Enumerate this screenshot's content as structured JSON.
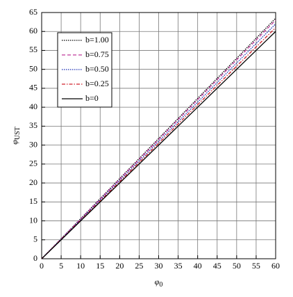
{
  "chart_data": {
    "type": "line",
    "xlabel": {
      "symbol": "φ",
      "subscript": "0"
    },
    "ylabel": {
      "symbol": "φ",
      "subscript": "UST"
    },
    "x": [
      0,
      60
    ],
    "series": [
      {
        "name": "b=1.00",
        "color": "#000000",
        "dash": "1.5,1.5",
        "values": [
          0,
          63.5
        ]
      },
      {
        "name": "b=0.75",
        "color": "#c0389a",
        "dash": "5,3",
        "values": [
          0,
          63
        ]
      },
      {
        "name": "b=0.50",
        "color": "#1a2fb5",
        "dash": "1.5,1.5",
        "values": [
          0,
          62
        ]
      },
      {
        "name": "b=0.25",
        "color": "#d0202a",
        "dash": "5,2,1.5,2",
        "values": [
          0,
          61
        ]
      },
      {
        "name": "b=0",
        "color": "#000000",
        "dash": "none",
        "values": [
          0,
          60
        ]
      }
    ],
    "xlim": [
      0,
      60
    ],
    "ylim": [
      0,
      65
    ],
    "xticks": [
      0,
      5,
      10,
      15,
      20,
      25,
      30,
      35,
      40,
      45,
      50,
      55,
      60
    ],
    "yticks": [
      0,
      5,
      10,
      15,
      20,
      25,
      30,
      35,
      40,
      45,
      50,
      55,
      60,
      65
    ],
    "grid": true,
    "legend": "upper-left"
  }
}
